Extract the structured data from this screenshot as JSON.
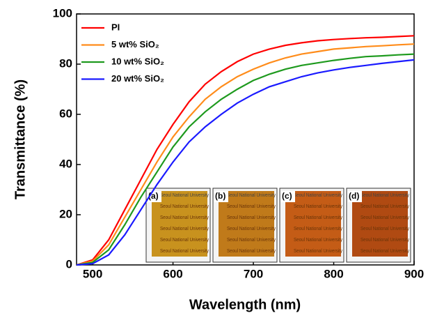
{
  "chart_data": {
    "type": "line",
    "xlabel": "Wavelength (nm)",
    "ylabel": "Transmittance (%)",
    "x": [
      480,
      500,
      520,
      540,
      560,
      580,
      600,
      620,
      640,
      660,
      680,
      700,
      720,
      740,
      760,
      780,
      800,
      820,
      840,
      860,
      880,
      900
    ],
    "series": [
      {
        "name": "PI",
        "color": "#ff0000",
        "values": [
          0,
          2,
          10,
          22,
          34,
          46,
          56,
          65,
          72,
          77,
          81,
          84,
          86,
          87.5,
          88.5,
          89.3,
          89.8,
          90.2,
          90.5,
          90.7,
          91,
          91.3
        ]
      },
      {
        "name": "5 wt% SiO₂",
        "color": "#ff8c1a",
        "values": [
          0,
          1.5,
          8,
          19,
          30,
          41,
          51,
          59,
          66,
          71,
          75,
          78,
          80.5,
          82.5,
          84,
          85,
          86,
          86.5,
          87,
          87.3,
          87.7,
          88
        ]
      },
      {
        "name": "10 wt% SiO₂",
        "color": "#1e9a1e",
        "values": [
          0,
          1,
          6,
          16,
          27,
          37,
          47,
          55,
          61,
          66,
          70,
          73.5,
          76,
          78,
          79.5,
          80.5,
          81.5,
          82.3,
          83,
          83.3,
          83.7,
          84
        ]
      },
      {
        "name": "20 wt% SiO₂",
        "color": "#1a1aff",
        "values": [
          0,
          0.5,
          4,
          12,
          22,
          32,
          41,
          49,
          55,
          60,
          64.5,
          68,
          71,
          73,
          75,
          76.5,
          77.7,
          78.7,
          79.5,
          80.3,
          81,
          81.7
        ]
      }
    ],
    "xlim": [
      480,
      900
    ],
    "ylim": [
      0,
      100
    ],
    "xticks": [
      500,
      600,
      700,
      800,
      900
    ],
    "yticks": [
      0,
      20,
      40,
      60,
      80,
      100
    ],
    "legend": "upper left",
    "insets": [
      {
        "label": "(a)",
        "text": "Seoul National University",
        "color": "#c8921e"
      },
      {
        "label": "(b)",
        "text": "Seoul National University",
        "color": "#c07a1a"
      },
      {
        "label": "(c)",
        "text": "Seoul National University",
        "color": "#c45c16"
      },
      {
        "label": "(d)",
        "text": "Seoul National University",
        "color": "#b04a12"
      }
    ]
  }
}
